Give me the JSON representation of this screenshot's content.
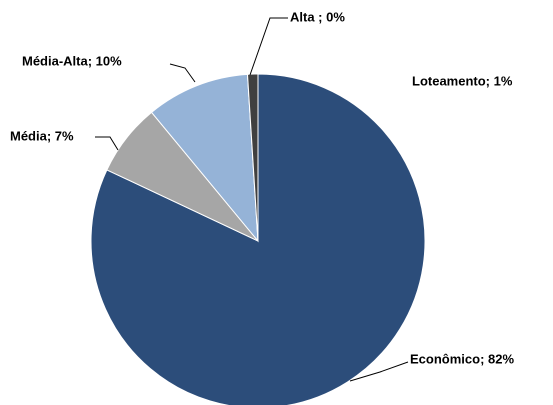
{
  "chart_data": {
    "type": "pie",
    "categories": [
      "Econômico",
      "Média",
      "Média-Alta",
      "Alta",
      "Loteamento"
    ],
    "values": [
      82,
      7,
      10,
      0,
      1
    ],
    "value_labels": [
      "Econômico; 82%",
      "Média; 7%",
      "Média-Alta; 10%",
      "Alta ; 0%",
      "Loteamento; 1%"
    ],
    "colors": [
      "#2c4d7a",
      "#a6a6a6",
      "#95b3d7",
      "#3a3a3a",
      "#404040"
    ]
  }
}
